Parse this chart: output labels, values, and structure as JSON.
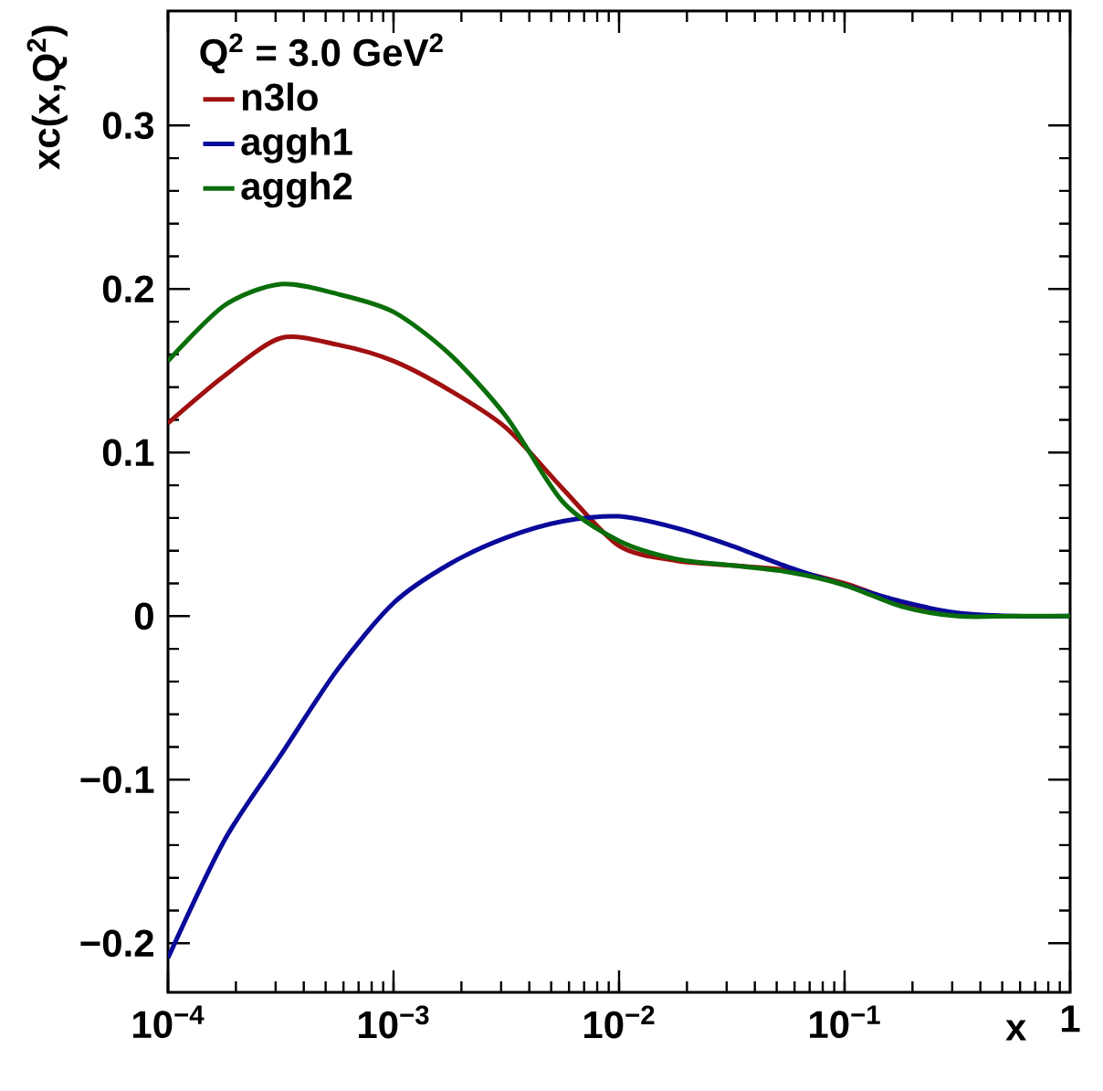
{
  "chart_data": {
    "type": "line",
    "legend_title": "Q$^{2}$ = 3.0 GeV$^{2}$",
    "xlabel": "x",
    "ylabel": "xc(x,Q$^{2}$)",
    "log": "x",
    "legend": "top left",
    "grid": false,
    "marker": "none",
    "line_style": "solid",
    "x": [
      0.0001,
      0.000178,
      0.000316,
      0.000562,
      0.001,
      0.00178,
      0.00316,
      0.00562,
      0.01,
      0.0178,
      0.0316,
      0.0562,
      0.1,
      0.178,
      0.316,
      0.562,
      1
    ],
    "xlim": [
      0.0001,
      1
    ],
    "ylim": [
      -0.23,
      0.37
    ],
    "xticks": [
      {
        "value": 0.0001,
        "label": "10$^{−4}$"
      },
      {
        "value": 0.001,
        "label": "10$^{−3}$"
      },
      {
        "value": 0.01,
        "label": "10$^{−2}$"
      },
      {
        "value": 0.1,
        "label": "10$^{−1}$"
      },
      1
    ],
    "yticks": [
      {
        "value": -0.2,
        "label": "−0.2"
      },
      {
        "value": -0.1,
        "label": "−0.1"
      },
      0,
      0.1,
      0.2,
      0.3
    ],
    "series": [
      {
        "name": "n3lo",
        "color": "#a01010",
        "values": [
          0.118,
          0.147,
          0.17,
          0.166,
          0.156,
          0.138,
          0.115,
          0.078,
          0.043,
          0.034,
          0.031,
          0.028,
          0.02,
          0.008,
          0.001,
          null,
          null
        ]
      },
      {
        "name": "aggh1",
        "color": "#0a0a9a",
        "values": [
          -0.209,
          -0.137,
          -0.085,
          -0.033,
          0.008,
          0.032,
          0.048,
          0.058,
          0.061,
          0.054,
          0.043,
          0.03,
          0.019,
          0.009,
          0.002,
          0,
          0
        ]
      },
      {
        "name": "aggh2",
        "color": "#0a6e0a",
        "values": [
          0.156,
          0.19,
          0.203,
          0.197,
          0.186,
          0.16,
          0.122,
          0.07,
          0.046,
          0.035,
          0.031,
          0.027,
          0.019,
          0.006,
          0,
          0,
          0
        ]
      }
    ]
  }
}
